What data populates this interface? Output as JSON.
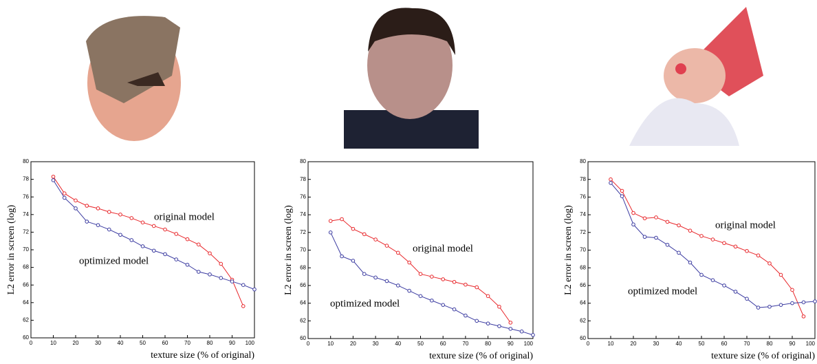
{
  "chart_data": [
    {
      "type": "line",
      "ylabel": "L2 error in screen (log)",
      "xlabel": "texture size (% of original)",
      "xlim": [
        0,
        100
      ],
      "ylim": [
        60,
        80
      ],
      "xticks": [
        0,
        10,
        20,
        30,
        40,
        50,
        60,
        70,
        80,
        90,
        100
      ],
      "yticks": [
        60,
        62,
        64,
        66,
        68,
        70,
        72,
        74,
        76,
        78,
        80
      ],
      "x": [
        10,
        15,
        20,
        25,
        30,
        35,
        40,
        45,
        50,
        55,
        60,
        65,
        70,
        75,
        80,
        85,
        90,
        95,
        100
      ],
      "series": [
        {
          "color": "#e8262a",
          "values": [
            78.3,
            76.4,
            75.6,
            75.0,
            74.7,
            74.3,
            74.0,
            73.6,
            73.1,
            72.7,
            72.3,
            71.8,
            71.2,
            70.6,
            69.6,
            68.4,
            66.6,
            63.6,
            null
          ]
        },
        {
          "color": "#3a3aa0",
          "values": [
            77.9,
            75.9,
            74.7,
            73.2,
            72.8,
            72.3,
            71.7,
            71.1,
            70.4,
            69.9,
            69.5,
            68.9,
            68.3,
            67.5,
            67.2,
            66.8,
            66.4,
            66.0,
            65.5
          ]
        }
      ],
      "annotations": [
        "original model",
        "optimized model"
      ]
    },
    {
      "type": "line",
      "ylabel": "L2 error in screen (log)",
      "xlabel": "texture size (% of original)",
      "xlim": [
        0,
        100
      ],
      "ylim": [
        60,
        80
      ],
      "xticks": [
        0,
        10,
        20,
        30,
        40,
        50,
        60,
        70,
        80,
        90,
        100
      ],
      "yticks": [
        60,
        62,
        64,
        66,
        68,
        70,
        72,
        74,
        76,
        78,
        80
      ],
      "x": [
        10,
        15,
        20,
        25,
        30,
        35,
        40,
        45,
        50,
        55,
        60,
        65,
        70,
        75,
        80,
        85,
        90,
        95,
        100
      ],
      "series": [
        {
          "color": "#e8262a",
          "values": [
            73.3,
            73.5,
            72.4,
            71.8,
            71.2,
            70.5,
            69.7,
            68.6,
            67.3,
            67.0,
            66.7,
            66.4,
            66.1,
            65.8,
            64.8,
            63.6,
            61.8,
            null,
            null
          ]
        },
        {
          "color": "#3a3aa0",
          "values": [
            72.0,
            69.3,
            68.8,
            67.3,
            66.9,
            66.5,
            66.0,
            65.4,
            64.8,
            64.3,
            63.8,
            63.3,
            62.6,
            62.0,
            61.7,
            61.4,
            61.1,
            60.8,
            60.4
          ]
        }
      ],
      "annotations": [
        "original model",
        "optimized model"
      ]
    },
    {
      "type": "line",
      "ylabel": "L2 error in screen (log)",
      "xlabel": "texture size (% of original)",
      "xlim": [
        0,
        100
      ],
      "ylim": [
        60,
        80
      ],
      "xticks": [
        0,
        10,
        20,
        30,
        40,
        50,
        60,
        70,
        80,
        90,
        100
      ],
      "yticks": [
        60,
        62,
        64,
        66,
        68,
        70,
        72,
        74,
        76,
        78,
        80
      ],
      "x": [
        10,
        15,
        20,
        25,
        30,
        35,
        40,
        45,
        50,
        55,
        60,
        65,
        70,
        75,
        80,
        85,
        90,
        95,
        100
      ],
      "series": [
        {
          "color": "#e8262a",
          "values": [
            78.0,
            76.7,
            74.2,
            73.6,
            73.7,
            73.2,
            72.8,
            72.2,
            71.6,
            71.2,
            70.8,
            70.4,
            69.9,
            69.4,
            68.5,
            67.2,
            65.5,
            62.5,
            null
          ]
        },
        {
          "color": "#3a3aa0",
          "values": [
            77.6,
            76.1,
            72.9,
            71.5,
            71.4,
            70.6,
            69.7,
            68.6,
            67.2,
            66.6,
            66.0,
            65.3,
            64.5,
            63.5,
            63.6,
            63.8,
            64.0,
            64.1,
            64.2
          ]
        }
      ],
      "annotations": [
        "original model",
        "optimized model"
      ]
    }
  ]
}
